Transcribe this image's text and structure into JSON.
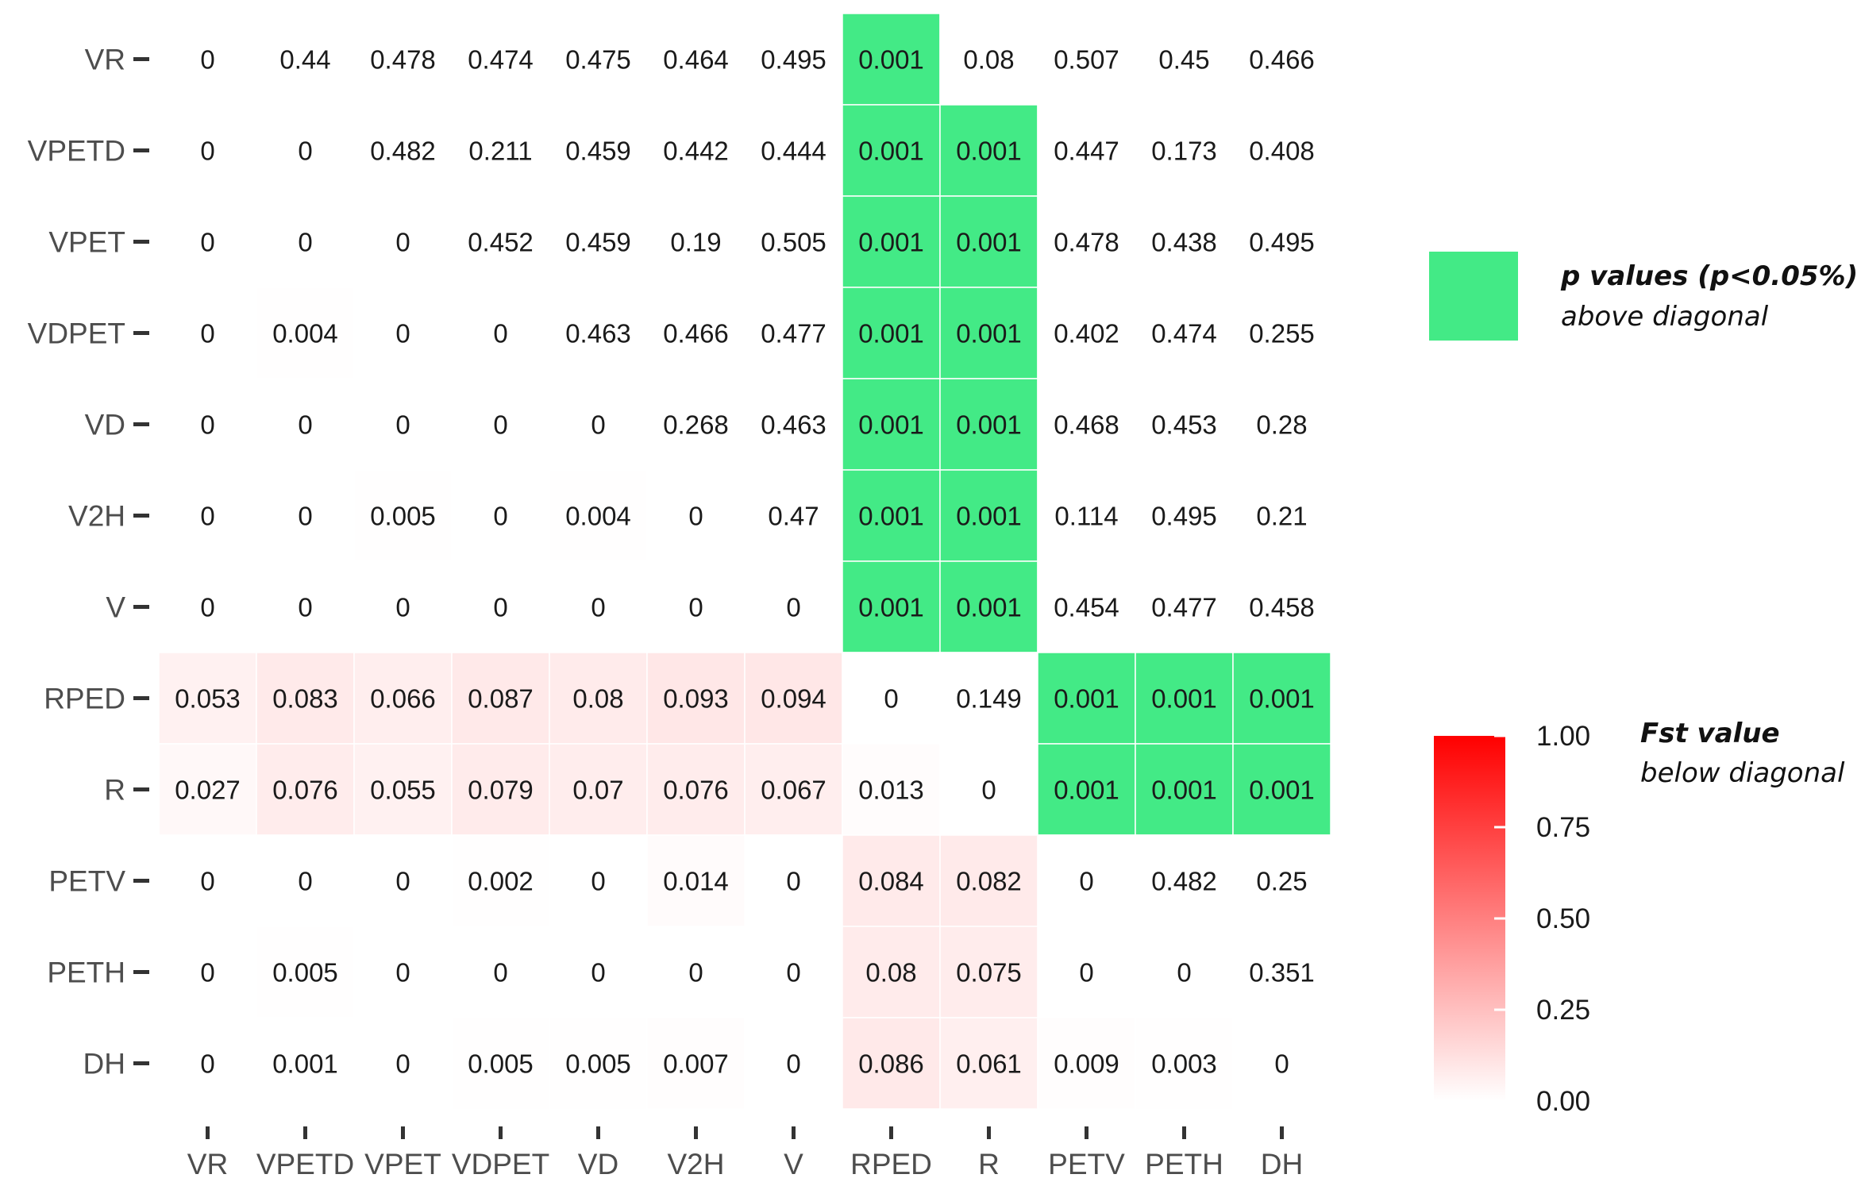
{
  "chart_data": {
    "type": "heatmap",
    "labels": [
      "VR",
      "VPETD",
      "VPET",
      "VDPET",
      "VD",
      "V2H",
      "V",
      "RPED",
      "R",
      "PETV",
      "PETH",
      "DH"
    ],
    "matrix": [
      [
        "0",
        "0.44",
        "0.478",
        "0.474",
        "0.475",
        "0.464",
        "0.495",
        "0.001",
        "0.08",
        "0.507",
        "0.45",
        "0.466"
      ],
      [
        "0",
        "0",
        "0.482",
        "0.211",
        "0.459",
        "0.442",
        "0.444",
        "0.001",
        "0.001",
        "0.447",
        "0.173",
        "0.408"
      ],
      [
        "0",
        "0",
        "0",
        "0.452",
        "0.459",
        "0.19",
        "0.505",
        "0.001",
        "0.001",
        "0.478",
        "0.438",
        "0.495"
      ],
      [
        "0",
        "0.004",
        "0",
        "0",
        "0.463",
        "0.466",
        "0.477",
        "0.001",
        "0.001",
        "0.402",
        "0.474",
        "0.255"
      ],
      [
        "0",
        "0",
        "0",
        "0",
        "0",
        "0.268",
        "0.463",
        "0.001",
        "0.001",
        "0.468",
        "0.453",
        "0.28"
      ],
      [
        "0",
        "0",
        "0.005",
        "0",
        "0.004",
        "0",
        "0.47",
        "0.001",
        "0.001",
        "0.114",
        "0.495",
        "0.21"
      ],
      [
        "0",
        "0",
        "0",
        "0",
        "0",
        "0",
        "0",
        "0.001",
        "0.001",
        "0.454",
        "0.477",
        "0.458"
      ],
      [
        "0.053",
        "0.083",
        "0.066",
        "0.087",
        "0.08",
        "0.093",
        "0.094",
        "0",
        "0.149",
        "0.001",
        "0.001",
        "0.001"
      ],
      [
        "0.027",
        "0.076",
        "0.055",
        "0.079",
        "0.07",
        "0.076",
        "0.067",
        "0.013",
        "0",
        "0.001",
        "0.001",
        "0.001"
      ],
      [
        "0",
        "0",
        "0",
        "0.002",
        "0",
        "0.014",
        "0",
        "0.084",
        "0.082",
        "0",
        "0.482",
        "0.25"
      ],
      [
        "0",
        "0.005",
        "0",
        "0",
        "0",
        "0",
        "0",
        "0.08",
        "0.075",
        "0",
        "0",
        "0.351"
      ],
      [
        "0",
        "0.001",
        "0",
        "0.005",
        "0.005",
        "0.007",
        "0",
        "0.086",
        "0.061",
        "0.009",
        "0.003",
        "0"
      ]
    ],
    "significant_cells": [
      [
        0,
        7
      ],
      [
        1,
        7
      ],
      [
        1,
        8
      ],
      [
        2,
        7
      ],
      [
        2,
        8
      ],
      [
        3,
        7
      ],
      [
        3,
        8
      ],
      [
        4,
        7
      ],
      [
        4,
        8
      ],
      [
        5,
        7
      ],
      [
        5,
        8
      ],
      [
        6,
        7
      ],
      [
        6,
        8
      ],
      [
        7,
        9
      ],
      [
        7,
        10
      ],
      [
        7,
        11
      ],
      [
        8,
        9
      ],
      [
        8,
        10
      ],
      [
        8,
        11
      ]
    ],
    "significant_color": "#43ea86",
    "fill_low_color": "#ffffff",
    "fill_high_color": "#ff0000",
    "fill_range": [
      0,
      1
    ],
    "legend_p": {
      "title": "p values (p<0.05%)",
      "subtitle": "above diagonal"
    },
    "legend_fst": {
      "title": "Fst value",
      "subtitle": "below diagonal",
      "ticks": [
        "1.00",
        "0.75",
        "0.50",
        "0.25",
        "0.00"
      ],
      "tick_values": [
        1.0,
        0.75,
        0.5,
        0.25,
        0.0
      ]
    }
  }
}
